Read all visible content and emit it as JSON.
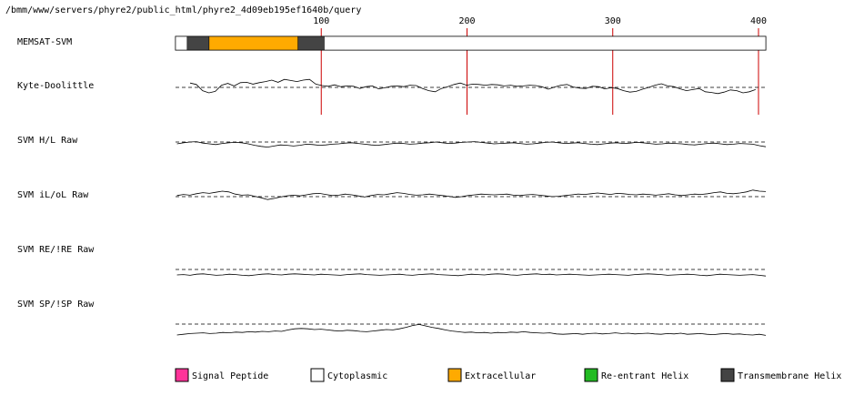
{
  "path_label": "/bmm/www/servers/phyre2/public_html/phyre2_4d09eb195ef1640b/query",
  "chart_data": {
    "type": "line",
    "sequence_length": 405,
    "ruler": {
      "ticks": [
        100,
        200,
        300,
        400
      ],
      "tick_labels": [
        "100",
        "200",
        "300",
        "400"
      ],
      "marker_color": "#cc0000"
    },
    "tracks": [
      {
        "label": "MEMSAT-SVM",
        "kind": "topology",
        "segments": [
          {
            "start": 1,
            "end": 9,
            "type": "Cytoplasmic"
          },
          {
            "start": 9,
            "end": 24,
            "type": "Transmembrane Helix"
          },
          {
            "start": 24,
            "end": 85,
            "type": "Extracellular"
          },
          {
            "start": 85,
            "end": 103,
            "type": "Transmembrane Helix"
          },
          {
            "start": 103,
            "end": 405,
            "type": "Cytoplasmic"
          }
        ]
      },
      {
        "label": "Kyte-Doolittle",
        "kind": "profile",
        "x_range": [
          10,
          398
        ],
        "y_range": [
          -4,
          4
        ],
        "baseline": 0,
        "values": [
          1.2,
          0.8,
          -0.9,
          -1.5,
          -1.1,
          0.6,
          1.1,
          0.4,
          1.3,
          1.4,
          0.9,
          1.3,
          1.6,
          2.0,
          1.4,
          2.2,
          1.9,
          1.6,
          2.0,
          2.2,
          0.9,
          0.5,
          0.3,
          0.7,
          0.2,
          0.4,
          0.3,
          -0.3,
          0.2,
          0.4,
          -0.4,
          -0.1,
          0.3,
          0.4,
          0.2,
          0.6,
          0.5,
          -0.3,
          -0.9,
          -1.2,
          -0.3,
          0.2,
          0.8,
          1.2,
          0.6,
          0.9,
          0.8,
          0.6,
          0.8,
          0.7,
          0.4,
          0.6,
          0.3,
          0.4,
          0.6,
          0.5,
          0.2,
          -0.5,
          0.1,
          0.6,
          0.8,
          0.1,
          -0.2,
          -0.3,
          0.3,
          0.2,
          -0.4,
          -0.1,
          -0.3,
          -0.9,
          -1.3,
          -1.1,
          -0.5,
          0.0,
          0.6,
          1.0,
          0.4,
          0.2,
          -0.4,
          -0.9,
          -0.6,
          -0.3,
          -1.2,
          -1.4,
          -1.7,
          -1.3,
          -0.7,
          -0.9,
          -1.5,
          -1.2,
          -0.6
        ]
      },
      {
        "label": "SVM H/L Raw",
        "kind": "profile",
        "x_range": [
          1,
          405
        ],
        "y_range": [
          -4,
          4
        ],
        "baseline": 0,
        "values": [
          -0.5,
          -0.2,
          0.0,
          0.1,
          -0.3,
          -0.5,
          -0.7,
          -0.4,
          -0.2,
          -0.1,
          -0.2,
          -0.5,
          -0.9,
          -1.2,
          -1.4,
          -1.1,
          -0.8,
          -0.9,
          -1.1,
          -0.9,
          -0.6,
          -0.7,
          -0.9,
          -0.8,
          -0.6,
          -0.5,
          -0.3,
          -0.2,
          -0.4,
          -0.6,
          -0.8,
          -0.9,
          -0.7,
          -0.5,
          -0.3,
          -0.4,
          -0.6,
          -0.5,
          -0.3,
          -0.2,
          0.0,
          -0.2,
          -0.4,
          -0.3,
          -0.1,
          0.0,
          0.1,
          -0.1,
          -0.3,
          -0.5,
          -0.4,
          -0.3,
          -0.2,
          -0.4,
          -0.6,
          -0.5,
          -0.3,
          -0.1,
          0.0,
          -0.2,
          -0.4,
          -0.3,
          -0.2,
          -0.4,
          -0.6,
          -0.7,
          -0.5,
          -0.3,
          -0.2,
          -0.4,
          -0.3,
          -0.1,
          -0.2,
          -0.4,
          -0.6,
          -0.5,
          -0.3,
          -0.4,
          -0.5,
          -0.7,
          -0.8,
          -0.6,
          -0.4,
          -0.3,
          -0.5,
          -0.7,
          -0.6,
          -0.4,
          -0.5,
          -0.6,
          -1.0,
          -1.3
        ]
      },
      {
        "label": "SVM iL/oL Raw",
        "kind": "profile",
        "x_range": [
          1,
          405
        ],
        "y_range": [
          -4,
          4
        ],
        "baseline": 0,
        "values": [
          0.3,
          0.6,
          0.4,
          0.8,
          1.1,
          0.9,
          1.2,
          1.5,
          1.3,
          0.7,
          0.4,
          0.5,
          0.1,
          -0.3,
          -0.8,
          -0.5,
          -0.1,
          0.2,
          0.4,
          0.2,
          0.5,
          0.8,
          0.9,
          0.6,
          0.3,
          0.4,
          0.7,
          0.5,
          0.2,
          -0.1,
          0.3,
          0.6,
          0.5,
          0.8,
          1.1,
          0.9,
          0.6,
          0.4,
          0.5,
          0.7,
          0.5,
          0.3,
          0.1,
          -0.2,
          0.0,
          0.3,
          0.5,
          0.7,
          0.6,
          0.5,
          0.6,
          0.7,
          0.4,
          0.3,
          0.5,
          0.6,
          0.4,
          0.2,
          0.0,
          0.1,
          0.3,
          0.5,
          0.7,
          0.6,
          0.8,
          1.0,
          0.8,
          0.6,
          0.9,
          0.8,
          0.6,
          0.5,
          0.7,
          0.6,
          0.4,
          0.6,
          0.8,
          0.5,
          0.3,
          0.5,
          0.7,
          0.6,
          0.8,
          1.1,
          1.3,
          0.9,
          0.8,
          1.0,
          1.3,
          1.8,
          1.5,
          1.4
        ]
      },
      {
        "label": "SVM RE/!RE Raw",
        "kind": "profile",
        "x_range": [
          1,
          405
        ],
        "y_range": [
          -4,
          4
        ],
        "baseline": 0,
        "values": [
          -1.5,
          -1.4,
          -1.6,
          -1.3,
          -1.2,
          -1.4,
          -1.6,
          -1.5,
          -1.3,
          -1.4,
          -1.6,
          -1.7,
          -1.5,
          -1.3,
          -1.2,
          -1.4,
          -1.5,
          -1.3,
          -1.2,
          -1.3,
          -1.4,
          -1.5,
          -1.3,
          -1.4,
          -1.5,
          -1.6,
          -1.4,
          -1.3,
          -1.2,
          -1.4,
          -1.5,
          -1.6,
          -1.5,
          -1.4,
          -1.3,
          -1.5,
          -1.6,
          -1.4,
          -1.3,
          -1.2,
          -1.4,
          -1.5,
          -1.6,
          -1.7,
          -1.5,
          -1.3,
          -1.4,
          -1.5,
          -1.3,
          -1.2,
          -1.3,
          -1.5,
          -1.6,
          -1.4,
          -1.3,
          -1.2,
          -1.4,
          -1.3,
          -1.5,
          -1.4,
          -1.3,
          -1.4,
          -1.5,
          -1.6,
          -1.5,
          -1.4,
          -1.3,
          -1.4,
          -1.5,
          -1.6,
          -1.4,
          -1.3,
          -1.2,
          -1.3,
          -1.4,
          -1.6,
          -1.5,
          -1.4,
          -1.3,
          -1.4,
          -1.6,
          -1.7,
          -1.5,
          -1.3,
          -1.4,
          -1.5,
          -1.6,
          -1.5,
          -1.4,
          -1.6,
          -1.8
        ]
      },
      {
        "label": "SVM SP/!SP Raw",
        "kind": "profile",
        "x_range": [
          1,
          405
        ],
        "y_range": [
          -4,
          4
        ],
        "baseline": 0,
        "values": [
          -3.0,
          -2.8,
          -2.6,
          -2.5,
          -2.4,
          -2.6,
          -2.5,
          -2.3,
          -2.4,
          -2.2,
          -2.3,
          -2.1,
          -2.2,
          -2.0,
          -2.1,
          -1.9,
          -2.0,
          -1.6,
          -1.3,
          -1.2,
          -1.3,
          -1.5,
          -1.4,
          -1.6,
          -1.8,
          -1.9,
          -1.7,
          -1.8,
          -2.0,
          -2.1,
          -1.9,
          -1.7,
          -1.5,
          -1.6,
          -1.3,
          -0.9,
          -0.4,
          -0.1,
          -0.5,
          -0.9,
          -1.2,
          -1.6,
          -1.9,
          -2.1,
          -2.3,
          -2.2,
          -2.4,
          -2.3,
          -2.5,
          -2.3,
          -2.4,
          -2.2,
          -2.3,
          -2.1,
          -2.3,
          -2.4,
          -2.5,
          -2.4,
          -2.7,
          -2.8,
          -2.7,
          -2.6,
          -2.8,
          -2.6,
          -2.5,
          -2.7,
          -2.6,
          -2.4,
          -2.6,
          -2.5,
          -2.7,
          -2.6,
          -2.5,
          -2.7,
          -2.8,
          -2.6,
          -2.7,
          -2.5,
          -2.8,
          -2.7,
          -2.6,
          -2.8,
          -2.9,
          -2.7,
          -2.6,
          -2.8,
          -2.7,
          -2.9,
          -3.0,
          -2.8,
          -3.1
        ]
      }
    ],
    "legend": [
      {
        "label": "Signal Peptide",
        "color": "#ff3399"
      },
      {
        "label": "Cytoplasmic",
        "color": "#ffffff"
      },
      {
        "label": "Extracellular",
        "color": "#ffaa00"
      },
      {
        "label": "Re-entrant Helix",
        "color": "#22bb22"
      },
      {
        "label": "Transmembrane Helix",
        "color": "#444444"
      }
    ]
  }
}
